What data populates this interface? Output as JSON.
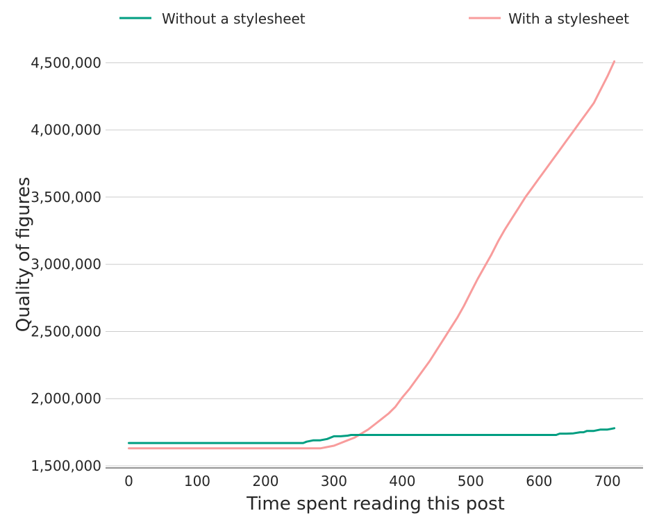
{
  "chart_data": {
    "type": "line",
    "title": "",
    "xlabel": "Time spent reading this post",
    "ylabel": "Quality of figures",
    "xlim": [
      -34,
      752
    ],
    "ylim": [
      1500000,
      4750000
    ],
    "x_ticks": [
      0,
      100,
      200,
      300,
      400,
      500,
      600,
      700
    ],
    "y_ticks": [
      1500000,
      2000000,
      2500000,
      3000000,
      3500000,
      4000000,
      4500000
    ],
    "x_tick_labels": [
      "0",
      "100",
      "200",
      "300",
      "400",
      "500",
      "600",
      "700"
    ],
    "y_tick_labels": [
      "1,500,000",
      "2,000,000",
      "2,500,000",
      "3,000,000",
      "3,500,000",
      "4,000,000",
      "4,500,000"
    ],
    "grid": "horizontal",
    "legend_position": "top",
    "series": [
      {
        "name": "Without a stylesheet",
        "color": "#009e81",
        "x": [
          0,
          100,
          200,
          255,
          260,
          270,
          280,
          290,
          300,
          310,
          320,
          325,
          330,
          400,
          500,
          600,
          625,
          630,
          640,
          650,
          660,
          665,
          670,
          680,
          690,
          700,
          705,
          710
        ],
        "y": [
          1670000,
          1670000,
          1670000,
          1670000,
          1680000,
          1690000,
          1690000,
          1700000,
          1720000,
          1720000,
          1725000,
          1730000,
          1730000,
          1730000,
          1730000,
          1730000,
          1730000,
          1740000,
          1740000,
          1742000,
          1750000,
          1750000,
          1760000,
          1760000,
          1770000,
          1770000,
          1775000,
          1780000
        ]
      },
      {
        "name": "With a stylesheet",
        "color": "#f89c9c",
        "x": [
          0,
          100,
          200,
          280,
          290,
          300,
          310,
          320,
          330,
          340,
          350,
          360,
          370,
          380,
          390,
          400,
          410,
          420,
          430,
          440,
          450,
          460,
          470,
          480,
          490,
          500,
          510,
          520,
          530,
          540,
          550,
          560,
          570,
          580,
          590,
          600,
          610,
          620,
          630,
          640,
          650,
          660,
          670,
          680,
          690,
          700,
          710
        ],
        "y": [
          1630000,
          1630000,
          1630000,
          1630000,
          1640000,
          1650000,
          1670000,
          1690000,
          1710000,
          1740000,
          1770000,
          1810000,
          1850000,
          1890000,
          1940000,
          2010000,
          2070000,
          2140000,
          2210000,
          2280000,
          2360000,
          2440000,
          2520000,
          2600000,
          2690000,
          2790000,
          2890000,
          2980000,
          3070000,
          3170000,
          3260000,
          3340000,
          3420000,
          3500000,
          3570000,
          3640000,
          3710000,
          3780000,
          3850000,
          3920000,
          3990000,
          4060000,
          4130000,
          4200000,
          4300000,
          4400000,
          4510000
        ]
      }
    ]
  }
}
